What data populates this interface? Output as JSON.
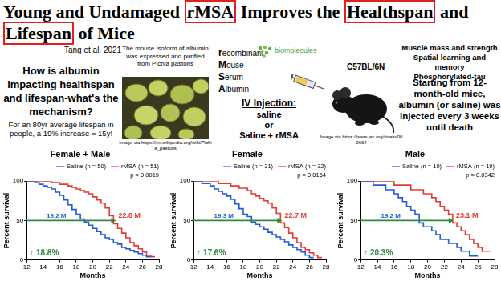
{
  "page": {
    "title": [
      [
        {
          "text": "Young and Undamaged ",
          "box": false
        },
        {
          "text": "rMSA",
          "box": true
        },
        {
          "text": " Improves the ",
          "box": false
        },
        {
          "text": "Healthspan",
          "box": true
        },
        {
          "text": " and",
          "box": false
        }
      ],
      [
        {
          "text": "Lifespan",
          "box": true
        },
        {
          "text": " of Mice",
          "box": false
        }
      ]
    ],
    "author": "Tang et al. 2021",
    "question": "How is albumin impacting healthspan and lifespan-what's the mechanism?",
    "yeast_caption": "The mouse isoform of albumin was expressed and purified from Pichia pastoris",
    "yeast_credit": "Image via https://en.wikipedia.org/wiki/Pichia_pastoris",
    "acronym": [
      {
        "initial": "r",
        "rest": "ecombinant"
      },
      {
        "initial": "M",
        "rest": "ouse"
      },
      {
        "initial": "S",
        "rest": "erum"
      },
      {
        "initial": "A",
        "rest": "lbumin"
      }
    ],
    "logo": "biomolecules",
    "injection": {
      "heading": "IV Injection:",
      "lines": [
        "saline",
        "or",
        "Saline + rMSA"
      ]
    },
    "mouse_strain": "C57BL/6N",
    "mouse_credit": "Image via https://www.jax.org/strain/000664",
    "outcomes": [
      "Muscle mass and strength",
      "Spatial learning and memory",
      "Phosphorylated-tau"
    ],
    "protocol": "Starting from 12-month-old mice, albumin (or saline) was injected every 3 weeks until death"
  },
  "chart_data": [
    {
      "type": "line",
      "title": "Female + Male",
      "xlabel": "Months",
      "ylabel": "Percent survival",
      "x": [
        12,
        12.5,
        13,
        13.5,
        14,
        14.5,
        15,
        15.5,
        16,
        16.5,
        17,
        17.5,
        18,
        18.5,
        19,
        19.5,
        20,
        20.5,
        21,
        21.5,
        22,
        22.5,
        23,
        23.5,
        24,
        24.5,
        25,
        25.5,
        26,
        26.5,
        27,
        27.5,
        28
      ],
      "series": [
        {
          "name": "Saline (n = 50)",
          "color": "#1f5bd6",
          "line_style": "step",
          "median": 19.2,
          "median_label": "19.2 M",
          "values": [
            100,
            100,
            100,
            98,
            96,
            94,
            92,
            90,
            86,
            82,
            76,
            70,
            64,
            58,
            52,
            48,
            44,
            40,
            36,
            32,
            28,
            26,
            22,
            20,
            16,
            14,
            12,
            10,
            8,
            6,
            4,
            null,
            null
          ]
        },
        {
          "name": "rMSA (n = 51)",
          "color": "#e53a2f",
          "line_style": "step",
          "median": 22.8,
          "median_label": "22.8 M",
          "values": [
            100,
            100,
            100,
            100,
            100,
            100,
            100,
            98,
            98,
            96,
            96,
            94,
            92,
            90,
            88,
            86,
            84,
            80,
            76,
            72,
            66,
            56,
            46,
            40,
            34,
            28,
            22,
            18,
            14,
            10,
            6,
            4,
            null
          ]
        }
      ],
      "median_percent": 50,
      "p_text": "p = 0.0019",
      "increase_text": "↑ 18.8%",
      "color": "#2e8b3d",
      "note": "For an 80yr average lifespan in people, a 19% increase = 15y!",
      "xlim": [
        12,
        28
      ],
      "xticks": [
        12,
        14,
        16,
        18,
        20,
        22,
        24,
        26,
        28
      ],
      "ylim": [
        0,
        100
      ],
      "yticks": [
        0,
        50,
        100
      ],
      "grid": false,
      "legend": "top"
    },
    {
      "type": "line",
      "title": "Female",
      "xlabel": "Months",
      "ylabel": "Percent survival",
      "x": [
        12,
        12.5,
        13,
        13.5,
        14,
        14.5,
        15,
        15.5,
        16,
        16.5,
        17,
        17.5,
        18,
        18.5,
        19,
        19.5,
        20,
        20.5,
        21,
        21.5,
        22,
        22.5,
        23,
        23.5,
        24,
        24.5,
        25,
        25.5,
        26,
        26.5,
        27,
        27.5,
        28
      ],
      "series": [
        {
          "name": "Saline (n = 31)",
          "color": "#1f5bd6",
          "line_style": "step",
          "median": 19.3,
          "median_label": "19.3 M",
          "values": [
            100,
            100,
            100,
            97,
            97,
            94,
            90,
            87,
            84,
            81,
            77,
            71,
            65,
            58,
            55,
            48,
            45,
            42,
            39,
            35,
            32,
            29,
            26,
            23,
            19,
            16,
            13,
            10,
            6,
            3,
            null,
            null,
            null
          ]
        },
        {
          "name": "rMSA (n = 32)",
          "color": "#e53a2f",
          "line_style": "step",
          "median": 22.7,
          "median_label": "22.7 M",
          "values": [
            100,
            100,
            100,
            100,
            100,
            100,
            100,
            97,
            97,
            97,
            94,
            94,
            91,
            91,
            88,
            84,
            81,
            78,
            75,
            72,
            66,
            59,
            47,
            41,
            34,
            28,
            22,
            16,
            13,
            9,
            6,
            3,
            null
          ]
        }
      ],
      "median_percent": 50,
      "p_text": "p = 0.0164",
      "increase_text": "↑ 17.6%",
      "color": "#2e8b3d",
      "xlim": [
        12,
        28
      ],
      "xticks": [
        12,
        14,
        16,
        18,
        20,
        22,
        24,
        26,
        28
      ],
      "ylim": [
        0,
        100
      ],
      "yticks": [
        0,
        50,
        100
      ],
      "grid": false,
      "legend": "top"
    },
    {
      "type": "line",
      "title": "Male",
      "xlabel": "Months",
      "ylabel": "Percent survival",
      "x": [
        12,
        12.5,
        13,
        13.5,
        14,
        14.5,
        15,
        15.5,
        16,
        16.5,
        17,
        17.5,
        18,
        18.5,
        19,
        19.5,
        20,
        20.5,
        21,
        21.5,
        22,
        22.5,
        23,
        23.5,
        24,
        24.5,
        25,
        25.5,
        26,
        26.5,
        27,
        27.5,
        28
      ],
      "series": [
        {
          "name": "Saline (n = 19)",
          "color": "#1f5bd6",
          "line_style": "step",
          "median": 19.2,
          "median_label": "19.2 M",
          "values": [
            100,
            100,
            100,
            100,
            95,
            95,
            95,
            89,
            89,
            84,
            79,
            74,
            68,
            63,
            58,
            47,
            42,
            42,
            37,
            32,
            26,
            26,
            21,
            21,
            16,
            11,
            11,
            5,
            5,
            null,
            null,
            null,
            null
          ]
        },
        {
          "name": "rMSA (n = 19)",
          "color": "#e53a2f",
          "line_style": "step",
          "median": 23.1,
          "median_label": "23.1 M",
          "values": [
            100,
            100,
            100,
            100,
            100,
            100,
            100,
            100,
            100,
            95,
            95,
            95,
            95,
            89,
            89,
            89,
            84,
            84,
            79,
            74,
            68,
            63,
            58,
            47,
            42,
            37,
            32,
            26,
            21,
            16,
            11,
            11,
            null
          ]
        }
      ],
      "median_percent": 50,
      "p_text": "p = 0.0342",
      "increase_text": "↑ 20.3%",
      "color": "#2e8b3d",
      "xlim": [
        12,
        28
      ],
      "xticks": [
        12,
        14,
        16,
        18,
        20,
        22,
        24,
        26,
        28
      ],
      "ylim": [
        0,
        100
      ],
      "yticks": [
        0,
        50,
        100
      ],
      "grid": false,
      "legend": "top"
    }
  ]
}
